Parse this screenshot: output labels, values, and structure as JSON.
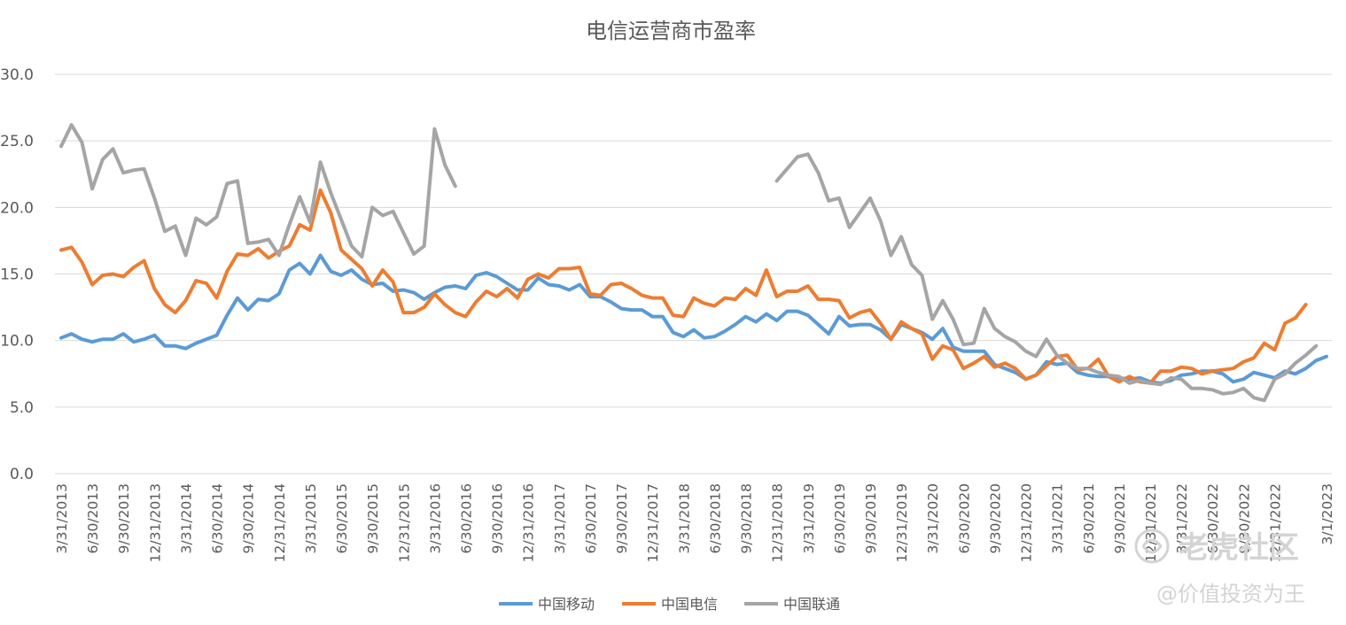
{
  "chart_data": {
    "type": "line",
    "title": "电信运营商市盈率",
    "xlabel": "",
    "ylabel": "",
    "ylim": [
      0,
      30
    ],
    "yticks": [
      "0.0",
      "5.0",
      "10.0",
      "15.0",
      "20.0",
      "25.0",
      "30.0"
    ],
    "grid": true,
    "legend": "bottom",
    "xtick_labels": [
      "3/31/2013",
      "6/30/2013",
      "9/30/2013",
      "12/31/2013",
      "3/31/2014",
      "6/30/2014",
      "9/30/2014",
      "12/31/2014",
      "3/31/2015",
      "6/30/2015",
      "9/30/2015",
      "12/31/2015",
      "3/31/2016",
      "6/30/2016",
      "9/30/2016",
      "12/31/2016",
      "3/31/2017",
      "6/30/2017",
      "9/30/2017",
      "12/31/2017",
      "3/31/2018",
      "6/30/2018",
      "9/30/2018",
      "12/31/2018",
      "3/31/2019",
      "6/30/2019",
      "9/30/2019",
      "12/31/2019",
      "3/31/2020",
      "6/30/2020",
      "9/30/2020",
      "12/31/2020",
      "3/31/2021",
      "6/30/2021",
      "9/30/2021",
      "12/31/2021",
      "3/31/2022",
      "6/30/2022",
      "9/30/2022",
      "12/31/2022",
      "3/1/2023"
    ],
    "x_index_note_points_per_quarter": 3,
    "series": [
      {
        "name": "中国移动",
        "color": "#5b9bd5",
        "values": [
          10.2,
          10.5,
          10.1,
          9.9,
          10.1,
          10.1,
          10.5,
          9.9,
          10.1,
          10.4,
          9.6,
          9.6,
          9.4,
          9.8,
          10.1,
          10.4,
          11.9,
          13.2,
          12.3,
          13.1,
          13.0,
          13.5,
          15.3,
          15.8,
          15.0,
          16.4,
          15.2,
          14.9,
          15.3,
          14.6,
          14.2,
          14.3,
          13.7,
          13.8,
          13.6,
          13.1,
          13.6,
          14.0,
          14.1,
          13.9,
          14.9,
          15.1,
          14.8,
          14.3,
          13.8,
          13.8,
          14.7,
          14.2,
          14.1,
          13.8,
          14.2,
          13.3,
          13.3,
          12.9,
          12.4,
          12.3,
          12.3,
          11.8,
          11.8,
          10.6,
          10.3,
          10.8,
          10.2,
          10.3,
          10.7,
          11.2,
          11.8,
          11.4,
          12.0,
          11.5,
          12.2,
          12.2,
          11.9,
          11.2,
          10.5,
          11.8,
          11.1,
          11.2,
          11.2,
          10.8,
          10.1,
          11.2,
          10.9,
          10.6,
          10.1,
          10.9,
          9.5,
          9.2,
          9.2,
          9.2,
          8.2,
          7.9,
          7.6,
          7.1,
          7.4,
          8.4,
          8.2,
          8.3,
          7.6,
          7.4,
          7.3,
          7.3,
          7.2,
          7.1,
          7.2,
          6.9,
          6.8,
          7.0,
          7.4,
          7.5,
          7.7,
          7.7,
          7.5,
          6.9,
          7.1,
          7.6,
          7.4,
          7.2,
          7.7,
          7.5,
          7.9,
          8.5,
          8.8
        ]
      },
      {
        "name": "中国电信",
        "color": "#ed7d31",
        "values": [
          16.8,
          17.0,
          15.9,
          14.2,
          14.9,
          15.0,
          14.8,
          15.5,
          16.0,
          13.9,
          12.7,
          12.1,
          13.0,
          14.5,
          14.3,
          13.2,
          15.2,
          16.5,
          16.4,
          16.9,
          16.2,
          16.7,
          17.1,
          18.7,
          18.3,
          21.3,
          19.6,
          16.8,
          16.1,
          15.4,
          14.1,
          15.3,
          14.4,
          12.1,
          12.1,
          12.5,
          13.5,
          12.7,
          12.1,
          11.8,
          12.9,
          13.7,
          13.3,
          13.9,
          13.2,
          14.6,
          15.0,
          14.7,
          15.4,
          15.4,
          15.5,
          13.5,
          13.4,
          14.2,
          14.3,
          13.9,
          13.4,
          13.2,
          13.2,
          11.9,
          11.8,
          13.2,
          12.8,
          12.6,
          13.2,
          13.1,
          13.9,
          13.4,
          15.3,
          13.3,
          13.7,
          13.7,
          14.1,
          13.1,
          13.1,
          13.0,
          11.7,
          12.1,
          12.3,
          11.3,
          10.1,
          11.4,
          10.9,
          10.5,
          8.6,
          9.6,
          9.3,
          7.9,
          8.3,
          8.8,
          8.0,
          8.3,
          7.9,
          7.1,
          7.4,
          8.1,
          8.8,
          8.9,
          7.8,
          7.9,
          8.6,
          7.3,
          6.9,
          7.3,
          6.9,
          6.8,
          7.7,
          7.7,
          8.0,
          7.9,
          7.5,
          7.7,
          7.8,
          7.9,
          8.4,
          8.7,
          9.8,
          9.3,
          11.3,
          11.7,
          12.7
        ]
      },
      {
        "name": "中国联通",
        "color": "#a5a5a5",
        "values": [
          24.6,
          26.2,
          24.9,
          21.4,
          23.6,
          24.4,
          22.6,
          22.8,
          22.9,
          20.7,
          18.2,
          18.6,
          16.4,
          19.2,
          18.7,
          19.3,
          21.8,
          22.0,
          17.3,
          17.4,
          17.6,
          16.4,
          18.7,
          20.8,
          18.9,
          23.4,
          21.1,
          19.1,
          17.1,
          16.3,
          20.0,
          19.4,
          19.7,
          18.1,
          16.5,
          17.1,
          25.9,
          23.2,
          21.6,
          null,
          null,
          null,
          null,
          null,
          null,
          null,
          null,
          null,
          null,
          null,
          null,
          null,
          null,
          null,
          null,
          null,
          null,
          null,
          null,
          null,
          null,
          null,
          null,
          null,
          null,
          null,
          null,
          null,
          null,
          22.0,
          22.9,
          23.8,
          24.0,
          22.6,
          20.5,
          20.7,
          18.5,
          19.6,
          20.7,
          19.0,
          16.4,
          17.8,
          15.7,
          14.9,
          11.6,
          13.0,
          11.6,
          9.7,
          9.8,
          12.4,
          10.9,
          10.3,
          9.9,
          9.2,
          8.8,
          10.1,
          8.9,
          8.3,
          7.9,
          7.9,
          7.6,
          7.4,
          7.3,
          6.8,
          7.0,
          6.8,
          6.7,
          7.2,
          7.1,
          6.4,
          6.4,
          6.3,
          6.0,
          6.1,
          6.4,
          5.7,
          5.5,
          7.1,
          7.5,
          8.3,
          8.9,
          9.6
        ]
      }
    ]
  },
  "watermark": {
    "brand": "老虎社区",
    "handle": "@价值投资为王"
  }
}
